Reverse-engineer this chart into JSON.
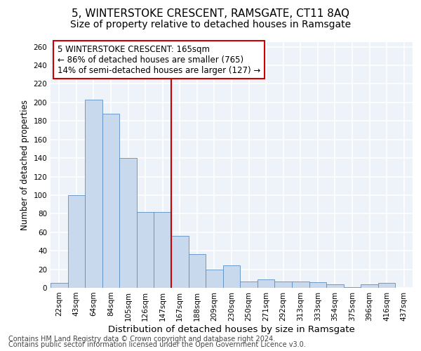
{
  "title": "5, WINTERSTOKE CRESCENT, RAMSGATE, CT11 8AQ",
  "subtitle": "Size of property relative to detached houses in Ramsgate",
  "xlabel": "Distribution of detached houses by size in Ramsgate",
  "ylabel": "Number of detached properties",
  "categories": [
    "22sqm",
    "43sqm",
    "64sqm",
    "84sqm",
    "105sqm",
    "126sqm",
    "147sqm",
    "167sqm",
    "188sqm",
    "209sqm",
    "230sqm",
    "250sqm",
    "271sqm",
    "292sqm",
    "313sqm",
    "333sqm",
    "354sqm",
    "375sqm",
    "396sqm",
    "416sqm",
    "437sqm"
  ],
  "values": [
    5,
    100,
    203,
    188,
    140,
    82,
    82,
    56,
    36,
    20,
    24,
    7,
    9,
    7,
    7,
    6,
    4,
    1,
    4,
    5,
    0
  ],
  "bar_color": "#c9d9ed",
  "bar_edge_color": "#5b8ec4",
  "property_line_index": 7,
  "property_line_color": "#cc0000",
  "ylim": [
    0,
    265
  ],
  "yticks": [
    0,
    20,
    40,
    60,
    80,
    100,
    120,
    140,
    160,
    180,
    200,
    220,
    240,
    260
  ],
  "annotation_line1": "5 WINTERSTOKE CRESCENT: 165sqm",
  "annotation_line2": "← 86% of detached houses are smaller (765)",
  "annotation_line3": "14% of semi-detached houses are larger (127) →",
  "annotation_box_color": "#cc0000",
  "footer1": "Contains HM Land Registry data © Crown copyright and database right 2024.",
  "footer2": "Contains public sector information licensed under the Open Government Licence v3.0.",
  "bg_color": "#eef2f9",
  "grid_color": "#ffffff",
  "title_fontsize": 11,
  "subtitle_fontsize": 10,
  "xlabel_fontsize": 9.5,
  "ylabel_fontsize": 8.5,
  "tick_fontsize": 7.5,
  "annotation_fontsize": 8.5,
  "footer_fontsize": 7
}
